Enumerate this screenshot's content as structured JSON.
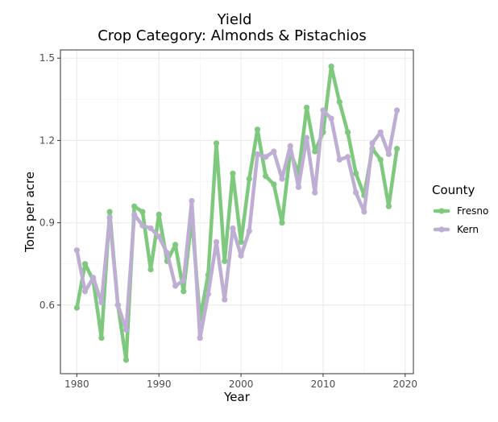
{
  "chart_data": {
    "type": "line",
    "title": "Yield",
    "subtitle": "Crop Category: Almonds & Pistachios",
    "xlabel": "Year",
    "ylabel": "Tons per acre",
    "xlim": [
      1978,
      2021
    ],
    "ylim": [
      0.35,
      1.53
    ],
    "xticks": [
      1980,
      1990,
      2000,
      2010,
      2020
    ],
    "yticks": [
      0.6,
      0.9,
      1.2,
      1.5
    ],
    "xtick_labels": [
      "1980",
      "1990",
      "2000",
      "2010",
      "2020"
    ],
    "ytick_labels": [
      "0.6",
      "0.9",
      "1.2",
      "1.5"
    ],
    "grid": true,
    "legend": {
      "title": "County",
      "position": "right"
    },
    "x": [
      1980,
      1981,
      1982,
      1983,
      1984,
      1985,
      1986,
      1987,
      1988,
      1989,
      1990,
      1991,
      1992,
      1993,
      1994,
      1995,
      1996,
      1997,
      1998,
      1999,
      2000,
      2001,
      2002,
      2003,
      2004,
      2005,
      2006,
      2007,
      2008,
      2009,
      2010,
      2011,
      2012,
      2013,
      2014,
      2015,
      2016,
      2017,
      2018,
      2019
    ],
    "series": [
      {
        "name": "Fresno",
        "color": "#7fc97f",
        "values": [
          0.59,
          0.75,
          0.69,
          0.48,
          0.94,
          0.6,
          0.4,
          0.96,
          0.94,
          0.73,
          0.93,
          0.76,
          0.82,
          0.65,
          0.92,
          0.55,
          0.71,
          1.19,
          0.76,
          1.08,
          0.83,
          1.06,
          1.24,
          1.07,
          1.04,
          0.9,
          1.16,
          1.08,
          1.32,
          1.16,
          1.23,
          1.47,
          1.34,
          1.23,
          1.08,
          1.0,
          1.17,
          1.13,
          0.96,
          1.17
        ]
      },
      {
        "name": "Kern",
        "color": "#beaed4",
        "values": [
          0.8,
          0.65,
          0.7,
          0.61,
          0.92,
          0.6,
          0.51,
          0.93,
          0.89,
          0.88,
          0.85,
          0.79,
          0.67,
          0.69,
          0.98,
          0.48,
          0.64,
          0.83,
          0.62,
          0.88,
          0.78,
          0.87,
          1.15,
          1.14,
          1.16,
          1.06,
          1.18,
          1.03,
          1.21,
          1.01,
          1.31,
          1.28,
          1.13,
          1.14,
          1.01,
          0.94,
          1.19,
          1.23,
          1.15,
          1.31
        ]
      }
    ]
  }
}
